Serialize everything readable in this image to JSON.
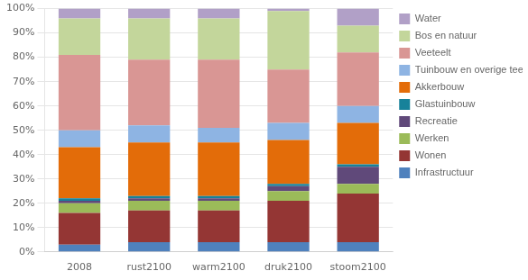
{
  "chart_data": {
    "type": "bar",
    "stacked": true,
    "categories": [
      "2008",
      "rust2100",
      "warm2100",
      "druk2100",
      "stoom2100"
    ],
    "series": [
      {
        "name": "Infrastructuur",
        "color": "#4F81BD",
        "values": [
          3,
          4,
          4,
          4,
          4
        ]
      },
      {
        "name": "Wonen",
        "color": "#943634",
        "values": [
          13,
          13,
          13,
          17,
          20
        ]
      },
      {
        "name": "Werken",
        "color": "#9BBB59",
        "values": [
          4,
          4,
          4,
          4,
          4
        ]
      },
      {
        "name": "Recreatie",
        "color": "#60497A",
        "values": [
          1,
          1,
          1,
          2,
          7
        ]
      },
      {
        "name": "Glastuinbouw",
        "color": "#17829A",
        "values": [
          1,
          1,
          1,
          1,
          1
        ]
      },
      {
        "name": "Akkerbouw",
        "color": "#E36C09",
        "values": [
          21,
          22,
          22,
          18,
          17
        ]
      },
      {
        "name": "Tuinbouw en overige teelt",
        "color": "#8EB4E3",
        "values": [
          7,
          7,
          6,
          7,
          7
        ]
      },
      {
        "name": "Veeteelt",
        "color": "#D99694",
        "values": [
          31,
          27,
          28,
          22,
          22
        ]
      },
      {
        "name": "Bos en natuur",
        "color": "#C3D69B",
        "values": [
          15,
          17,
          17,
          24,
          11
        ]
      },
      {
        "name": "Water",
        "color": "#B1A0C7",
        "values": [
          4,
          4,
          4,
          1,
          7
        ]
      }
    ],
    "ylim": [
      0,
      100
    ],
    "yticks": [
      {
        "value": 0,
        "label": "0%"
      },
      {
        "value": 10,
        "label": "10%"
      },
      {
        "value": 20,
        "label": "20%"
      },
      {
        "value": 30,
        "label": "30%"
      },
      {
        "value": 40,
        "label": "40%"
      },
      {
        "value": 50,
        "label": "50%"
      },
      {
        "value": 60,
        "label": "60%"
      },
      {
        "value": 70,
        "label": "70%"
      },
      {
        "value": 80,
        "label": "80%"
      },
      {
        "value": 90,
        "label": "90%"
      },
      {
        "value": 100,
        "label": "100%"
      }
    ],
    "grid": true,
    "legend": "right"
  }
}
